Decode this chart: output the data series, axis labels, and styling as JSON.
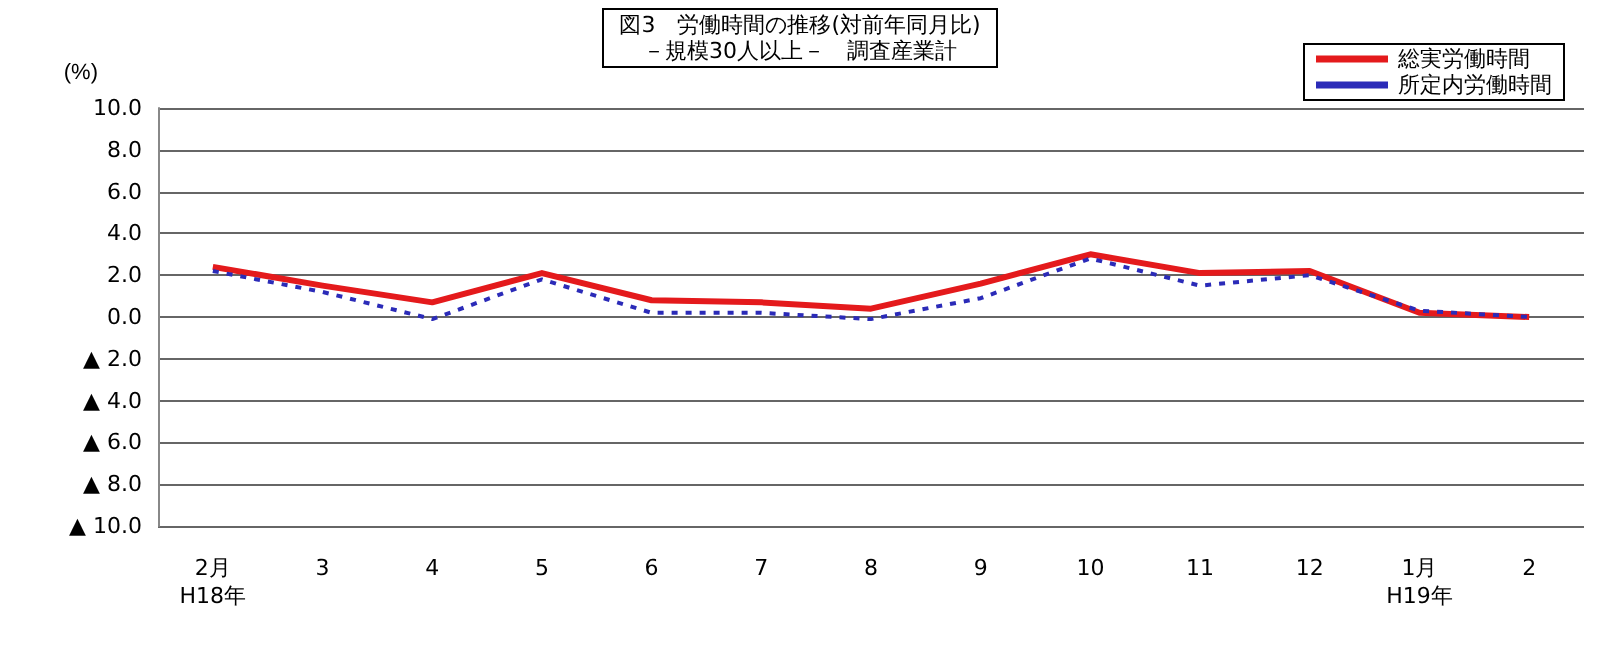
{
  "chart_data": {
    "type": "line",
    "title": "図3　労働時間の推移(対前年同月比)",
    "subtitle": "－規模30人以上－　調査産業計",
    "ylabel": "(%)",
    "categories": [
      "2月\nH18年",
      "3",
      "4",
      "5",
      "6",
      "7",
      "8",
      "9",
      "10",
      "11",
      "12",
      "1月\nH19年",
      "2"
    ],
    "series": [
      {
        "name": "総実労働時間",
        "color": "#e41a1c",
        "line_style": "solid",
        "values": [
          2.4,
          1.5,
          0.7,
          2.1,
          0.8,
          0.7,
          0.4,
          1.6,
          3.0,
          2.1,
          2.2,
          0.2,
          0.0
        ]
      },
      {
        "name": "所定内労働時間",
        "color": "#2b2bb8",
        "line_style": "dotted",
        "values": [
          2.2,
          1.2,
          -0.1,
          1.8,
          0.2,
          0.2,
          -0.1,
          0.9,
          2.8,
          1.5,
          2.0,
          0.3,
          0.0
        ]
      }
    ],
    "ylim": [
      -10,
      10
    ],
    "yticks": [
      {
        "value": -10,
        "label": "▲ 10.0"
      },
      {
        "value": -8,
        "label": "▲ 8.0"
      },
      {
        "value": -6,
        "label": "▲ 6.0"
      },
      {
        "value": -4,
        "label": "▲ 4.0"
      },
      {
        "value": -2,
        "label": "▲ 2.0"
      },
      {
        "value": 0,
        "label": "0.0"
      },
      {
        "value": 2,
        "label": "2.0"
      },
      {
        "value": 4,
        "label": "4.0"
      },
      {
        "value": 6,
        "label": "6.0"
      },
      {
        "value": 8,
        "label": "8.0"
      },
      {
        "value": 10,
        "label": "10.0"
      }
    ],
    "grid": "y",
    "legend": "top right",
    "marker": "none"
  }
}
